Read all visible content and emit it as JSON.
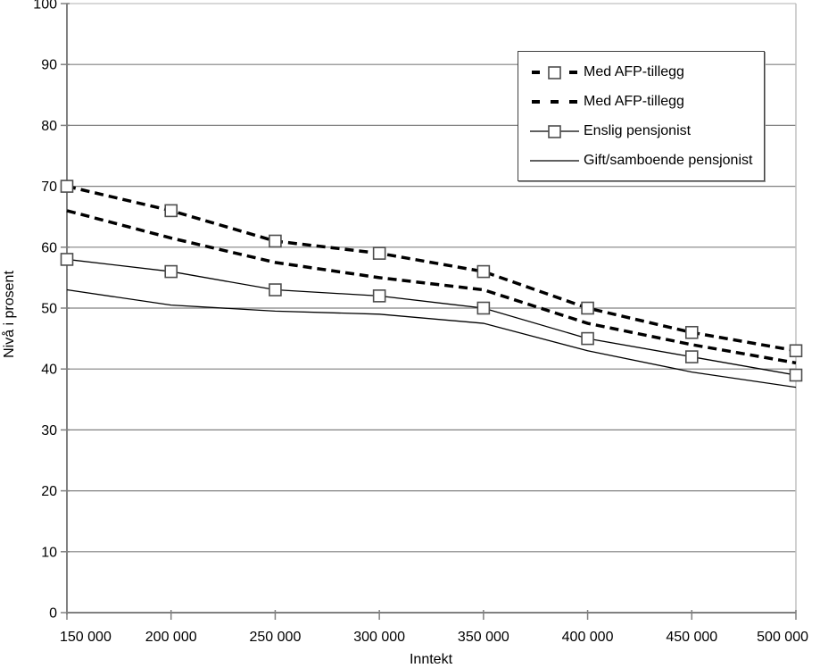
{
  "chart_data": {
    "type": "line",
    "title": "",
    "xlabel": "Inntekt",
    "ylabel": "Nivå i prosent",
    "xlim": [
      150000,
      500000
    ],
    "ylim": [
      0,
      100
    ],
    "y_tick_step": 10,
    "y_tick_labels": [
      "0",
      "10",
      "20",
      "30",
      "40",
      "50",
      "60",
      "70",
      "80",
      "90",
      "100"
    ],
    "x_tick_values": [
      150000,
      200000,
      250000,
      300000,
      350000,
      400000,
      450000,
      500000
    ],
    "x_tick_labels": [
      "150 000",
      "200 000",
      "250 000",
      "300 000",
      "350 000",
      "400 000",
      "450 000",
      "500 000"
    ],
    "grid": "horizontal",
    "legend_position": "top-right-inside",
    "x": [
      150000,
      200000,
      250000,
      300000,
      350000,
      400000,
      450000,
      500000
    ],
    "series": [
      {
        "name": "Med AFP-tillegg",
        "line": "dashed",
        "weight": "thick",
        "marker": "square",
        "values": [
          70,
          66,
          61,
          59,
          56,
          50,
          46,
          43
        ]
      },
      {
        "name": "Med AFP-tillegg",
        "line": "dashed",
        "weight": "thick",
        "marker": "none",
        "values": [
          66,
          61.5,
          57.5,
          55,
          53,
          47.5,
          44,
          41
        ]
      },
      {
        "name": "Enslig pensjonist",
        "line": "solid",
        "weight": "thin",
        "marker": "square",
        "values": [
          58,
          56,
          53,
          52,
          50,
          45,
          42,
          39
        ]
      },
      {
        "name": "Gift/samboende pensjonist",
        "line": "solid",
        "weight": "thin",
        "marker": "none",
        "values": [
          53,
          50.5,
          49.5,
          49,
          47.5,
          43,
          39.5,
          37
        ]
      }
    ]
  },
  "colors": {
    "series_line": "#000000",
    "grid_major": "#808080",
    "grid_top": "#c0c0c0",
    "plot_right_border": "#c0c0c0",
    "axis": "#808080",
    "marker_fill": "#ffffff",
    "marker_border": "#4d4d4d",
    "text": "#000000",
    "background": "#ffffff"
  }
}
